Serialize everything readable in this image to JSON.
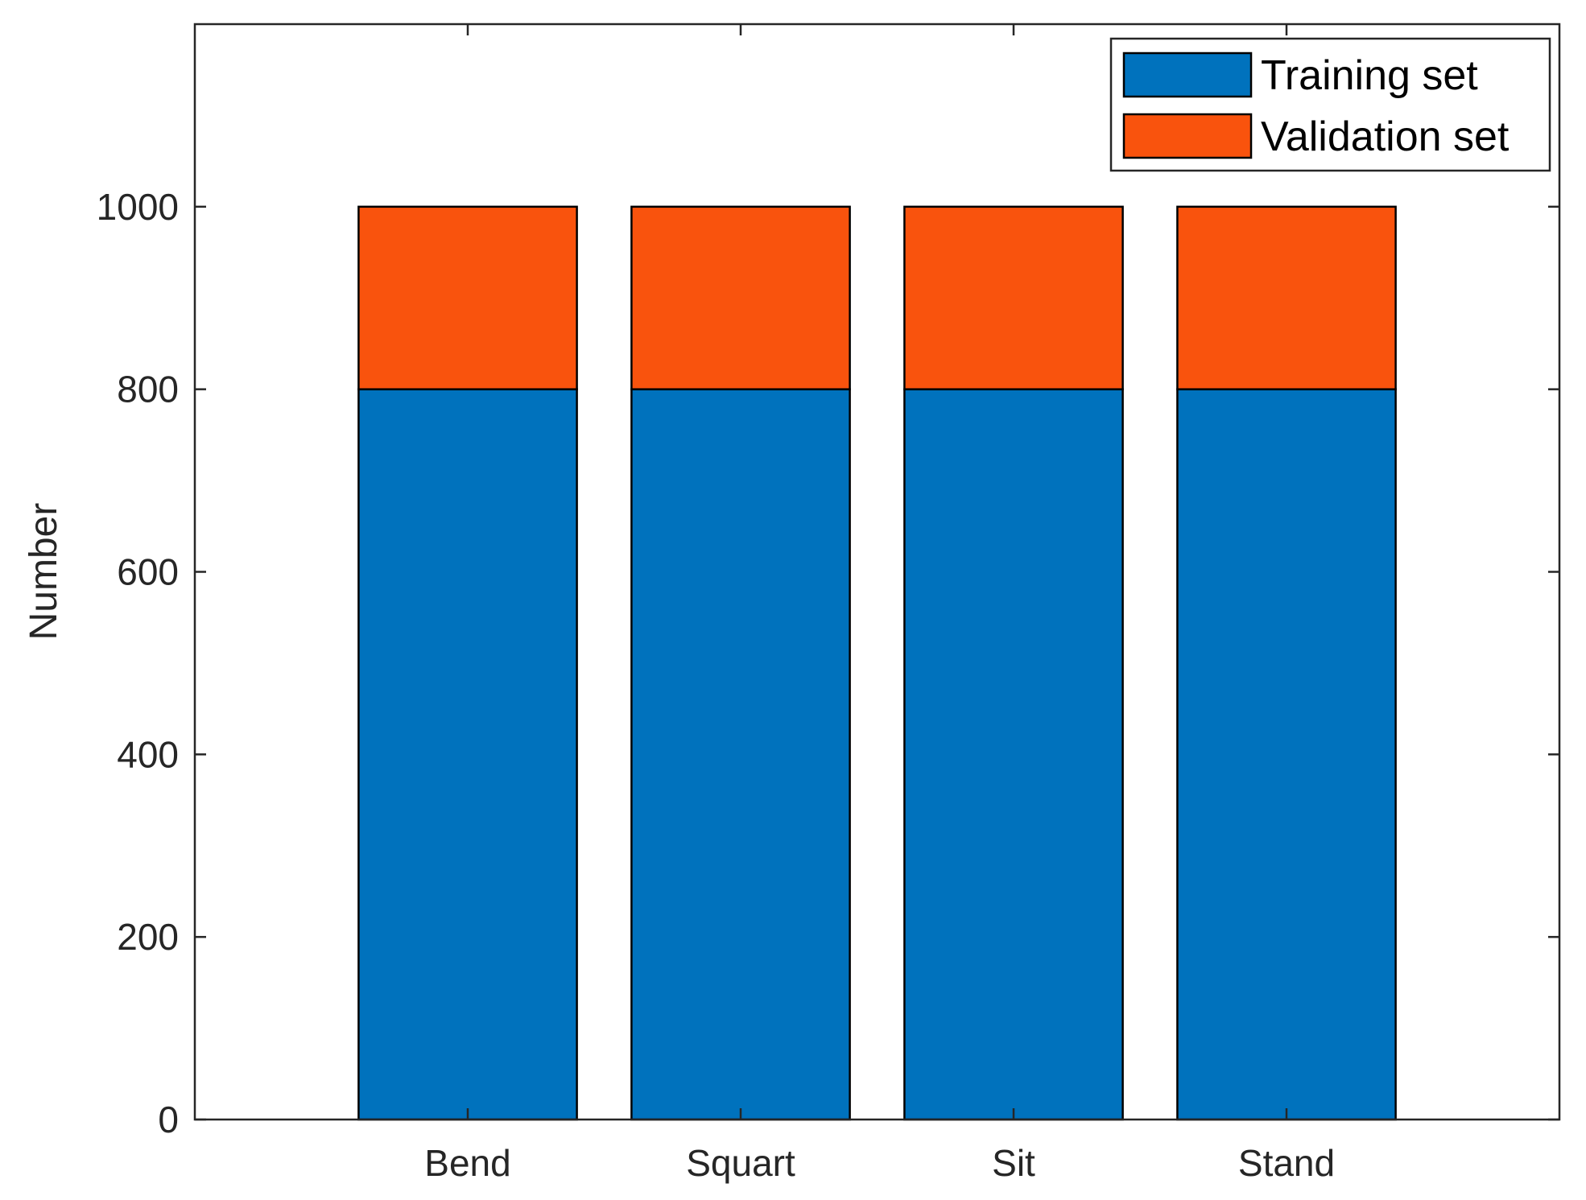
{
  "chart_data": {
    "type": "bar",
    "stacked": true,
    "categories": [
      "Bend",
      "Squart",
      "Sit",
      "Stand"
    ],
    "series": [
      {
        "name": "Training set",
        "values": [
          800,
          800,
          800,
          800
        ],
        "color": "#0072BD"
      },
      {
        "name": "Validation set",
        "values": [
          200,
          200,
          200,
          200
        ],
        "color": "#F9530D"
      }
    ],
    "xlabel": "",
    "ylabel": "Number",
    "ylim": [
      0,
      1200
    ],
    "yticks": [
      0,
      200,
      400,
      600,
      800,
      1000
    ],
    "grid": false,
    "legend_position": "top-right"
  }
}
